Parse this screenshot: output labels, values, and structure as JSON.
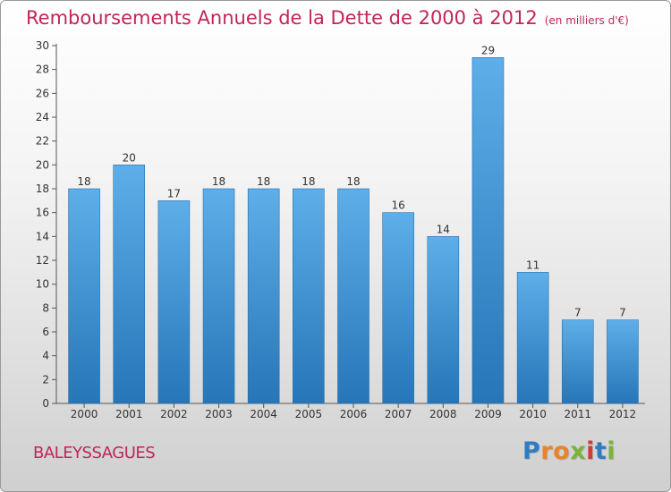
{
  "header": {
    "title": "Remboursements Annuels de la Dette de 2000 à 2012",
    "unit": "(en milliers d'€)"
  },
  "commune": "BALEYSSAGUES",
  "logo": {
    "text": "Proxiti",
    "letters": [
      {
        "char": "P",
        "color": "#2f7cc0"
      },
      {
        "char": "r",
        "color": "#e8842a"
      },
      {
        "char": "o",
        "color": "#e8842a"
      },
      {
        "char": "x",
        "color": "#7bb33a"
      },
      {
        "char": "i",
        "color": "#d23a3a"
      },
      {
        "char": "t",
        "color": "#2f7cc0"
      },
      {
        "char": "i",
        "color": "#7bb33a"
      }
    ]
  },
  "chart_data": {
    "type": "bar",
    "title": "Remboursements Annuels de la Dette de 2000 à 2012",
    "subtitle": "(en milliers d'€)",
    "categories": [
      "2000",
      "2001",
      "2002",
      "2003",
      "2004",
      "2005",
      "2006",
      "2007",
      "2008",
      "2009",
      "2010",
      "2011",
      "2012"
    ],
    "values": [
      18,
      20,
      17,
      18,
      18,
      18,
      18,
      16,
      14,
      29,
      11,
      7,
      7
    ],
    "data_labels": [
      "18",
      "20",
      "17",
      "18",
      "18",
      "18",
      "18",
      "16",
      "14",
      "29",
      "11",
      "7",
      "7"
    ],
    "ylim": [
      0,
      30
    ],
    "yticks": [
      0,
      2,
      4,
      6,
      8,
      10,
      12,
      14,
      16,
      18,
      20,
      22,
      24,
      26,
      28,
      30
    ],
    "grid": false,
    "legend": "none",
    "bar_color": "#3d95d9",
    "text_color": "#c2245a"
  }
}
